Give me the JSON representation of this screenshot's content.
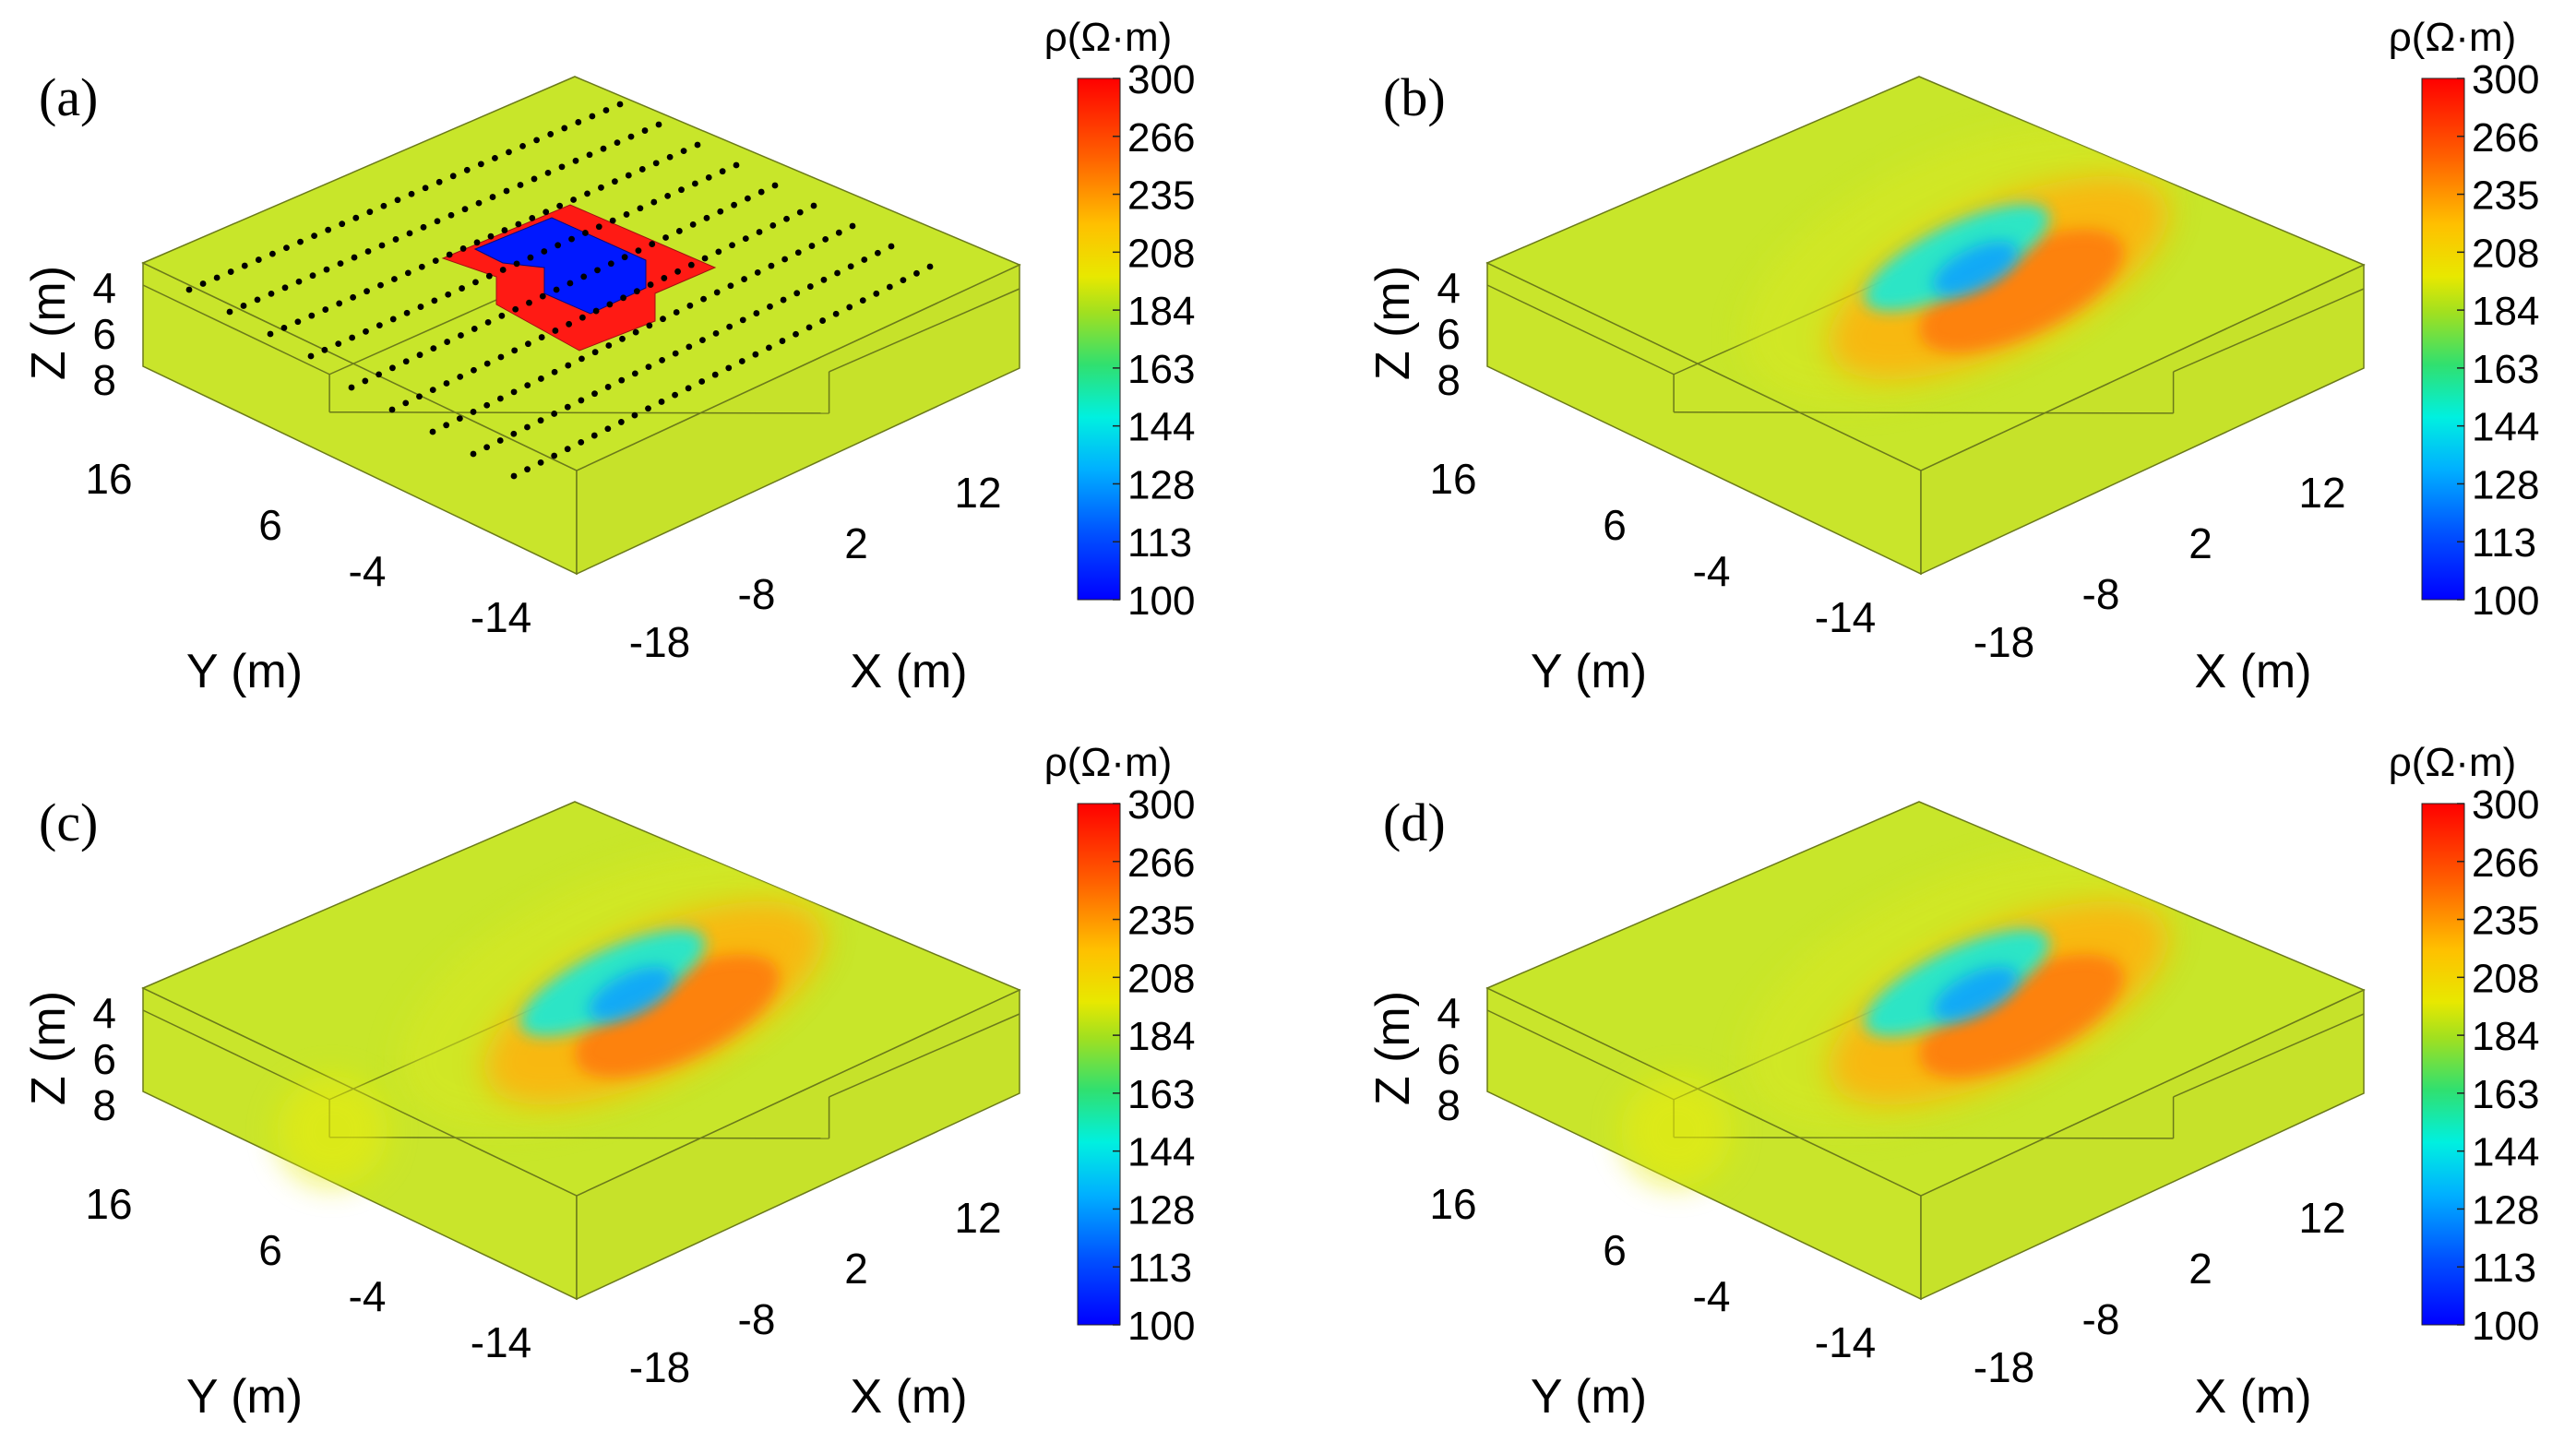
{
  "figure": {
    "panels": [
      {
        "label": "(a)"
      },
      {
        "label": "(b)"
      },
      {
        "label": "(c)"
      },
      {
        "label": "(d)"
      }
    ],
    "colors": {
      "background_model": "#c8e62a",
      "edge": "#6b7a1a",
      "anomaly_conductive": "#0018ff",
      "anomaly_resistive": "#ff1a14",
      "electrode": "#000000",
      "text": "#000000"
    }
  },
  "chart_data": [
    {
      "type": "heatmap",
      "panel": "(a)",
      "title": "",
      "description_units": "3D resistivity model block",
      "xlabel": "X (m)",
      "ylabel": "Y (m)",
      "zlabel": "Z (m)",
      "x_ticks": [
        "-18",
        "-8",
        "2",
        "12"
      ],
      "y_ticks": [
        "16",
        "6",
        "-4",
        "-14"
      ],
      "z_ticks": [
        "4",
        "6",
        "8"
      ],
      "colorbar": {
        "label": "ρ(Ω·m)",
        "ticks": [
          "300",
          "266",
          "235",
          "208",
          "184",
          "163",
          "144",
          "128",
          "113",
          "100"
        ],
        "range": [
          100,
          300
        ],
        "colormap": "jet"
      },
      "background_resistivity": 200,
      "anomalies": [
        {
          "name": "resistive",
          "value": 300
        },
        {
          "name": "conductive",
          "value": 100
        }
      ],
      "survey_lines": 9,
      "electrodes_per_line": 32
    },
    {
      "type": "heatmap",
      "panel": "(b)",
      "xlabel": "X (m)",
      "ylabel": "Y (m)",
      "zlabel": "Z (m)",
      "x_ticks": [
        "-18",
        "-8",
        "2",
        "12"
      ],
      "y_ticks": [
        "16",
        "6",
        "-4",
        "-14"
      ],
      "z_ticks": [
        "4",
        "6",
        "8"
      ],
      "colorbar": {
        "label": "ρ(Ω·m)",
        "ticks": [
          "300",
          "266",
          "235",
          "208",
          "184",
          "163",
          "144",
          "128",
          "113",
          "100"
        ],
        "range": [
          100,
          300
        ],
        "colormap": "jet"
      },
      "inverted_min": 140,
      "inverted_max": 250
    },
    {
      "type": "heatmap",
      "panel": "(c)",
      "xlabel": "X (m)",
      "ylabel": "Y (m)",
      "zlabel": "Z (m)",
      "x_ticks": [
        "-18",
        "-8",
        "2",
        "12"
      ],
      "y_ticks": [
        "16",
        "6",
        "-4",
        "-14"
      ],
      "z_ticks": [
        "4",
        "6",
        "8"
      ],
      "colorbar": {
        "label": "ρ(Ω·m)",
        "ticks": [
          "300",
          "266",
          "235",
          "208",
          "184",
          "163",
          "144",
          "128",
          "113",
          "100"
        ],
        "range": [
          100,
          300
        ],
        "colormap": "jet"
      },
      "inverted_min": 145,
      "inverted_max": 245
    },
    {
      "type": "heatmap",
      "panel": "(d)",
      "xlabel": "X (m)",
      "ylabel": "Y (m)",
      "zlabel": "Z (m)",
      "x_ticks": [
        "-18",
        "-8",
        "2",
        "12"
      ],
      "y_ticks": [
        "16",
        "6",
        "-4",
        "-14"
      ],
      "z_ticks": [
        "4",
        "6",
        "8"
      ],
      "colorbar": {
        "label": "ρ(Ω·m)",
        "ticks": [
          "300",
          "266",
          "235",
          "208",
          "184",
          "163",
          "144",
          "128",
          "113",
          "100"
        ],
        "range": [
          100,
          300
        ],
        "colormap": "jet"
      },
      "inverted_min": 135,
      "inverted_max": 250
    }
  ]
}
